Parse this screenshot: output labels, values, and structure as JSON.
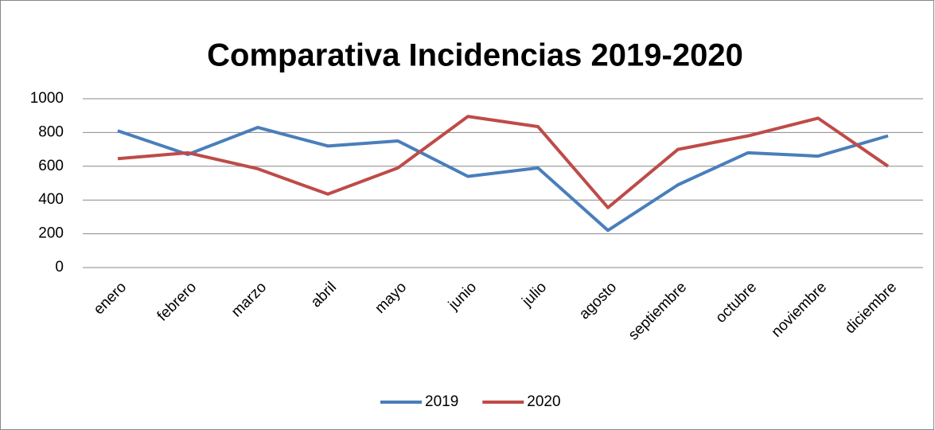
{
  "chart_data": {
    "type": "line",
    "title": "Comparativa Incidencias 2019-2020",
    "categories": [
      "enero",
      "febrero",
      "marzo",
      "abril",
      "mayo",
      "junio",
      "julio",
      "agosto",
      "septiembre",
      "octubre",
      "noviembre",
      "diciembre"
    ],
    "series": [
      {
        "name": "2019",
        "color": "#4a7ebb",
        "values": [
          810,
          670,
          830,
          720,
          750,
          540,
          590,
          220,
          490,
          680,
          660,
          780
        ]
      },
      {
        "name": "2020",
        "color": "#be4b48",
        "values": [
          645,
          680,
          585,
          435,
          590,
          895,
          835,
          355,
          700,
          780,
          885,
          600
        ]
      }
    ],
    "ylim": [
      0,
      1000
    ],
    "yticks": [
      0,
      200,
      400,
      600,
      800,
      1000
    ],
    "grid": true,
    "legend": "bottom"
  }
}
